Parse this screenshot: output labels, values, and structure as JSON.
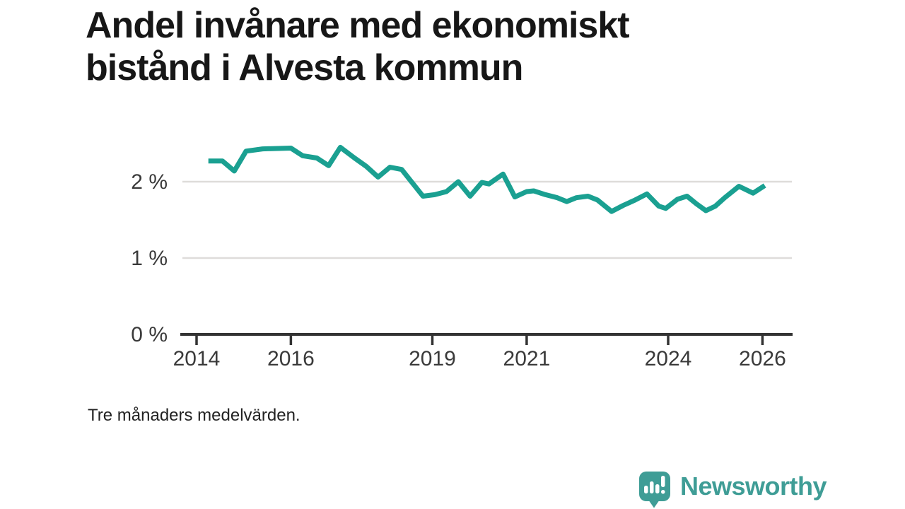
{
  "header": {
    "title": "Andel invånare med ekonomiskt bistånd i Alvesta kommun"
  },
  "footer": {
    "note": "Tre månaders medelvärden.",
    "brand": {
      "name": "Newsworthy",
      "icon": "bar-chart-exclamation-bubble-icon",
      "color": "#3f9d96"
    }
  },
  "chart_data": {
    "type": "line",
    "title": "Andel invånare med ekonomiskt bistånd i Alvesta kommun",
    "note": "Tre månaders medelvärden.",
    "legend": "none",
    "grid": "horizontal-y",
    "xlim": [
      2013.65,
      2026.65
    ],
    "ylim": [
      0,
      2.6
    ],
    "xticks": [
      2014,
      2016,
      2019,
      2021,
      2024,
      2026
    ],
    "yticks": [
      0,
      1,
      2
    ],
    "ytick_labels": [
      "0 %",
      "1 %",
      "2 %"
    ],
    "series": [
      {
        "name": "Andel invånare med ekonomiskt bistånd (%)",
        "x": [
          2014.25,
          2014.55,
          2014.8,
          2015.05,
          2015.4,
          2016.0,
          2016.25,
          2016.55,
          2016.8,
          2017.05,
          2017.35,
          2017.6,
          2017.85,
          2018.1,
          2018.35,
          2018.8,
          2019.05,
          2019.3,
          2019.55,
          2019.8,
          2020.05,
          2020.2,
          2020.5,
          2020.75,
          2021.0,
          2021.15,
          2021.4,
          2021.65,
          2021.85,
          2022.05,
          2022.3,
          2022.5,
          2022.8,
          2023.05,
          2023.3,
          2023.55,
          2023.8,
          2023.95,
          2024.2,
          2024.4,
          2024.6,
          2024.8,
          2025.0,
          2025.2,
          2025.5,
          2025.8,
          2026.05
        ],
        "y": [
          2.27,
          2.27,
          2.14,
          2.4,
          2.43,
          2.44,
          2.34,
          2.31,
          2.21,
          2.45,
          2.31,
          2.2,
          2.06,
          2.19,
          2.16,
          1.81,
          1.83,
          1.87,
          2.0,
          1.81,
          1.99,
          1.97,
          2.1,
          1.8,
          1.87,
          1.88,
          1.83,
          1.79,
          1.74,
          1.79,
          1.81,
          1.76,
          1.61,
          1.69,
          1.76,
          1.84,
          1.68,
          1.65,
          1.77,
          1.81,
          1.71,
          1.62,
          1.68,
          1.79,
          1.94,
          1.85,
          1.95
        ]
      }
    ],
    "colors": {
      "line": "#1aa091",
      "axis": "#333333",
      "grid": "#dedcda",
      "tick_text": "#3a3a3a"
    }
  }
}
